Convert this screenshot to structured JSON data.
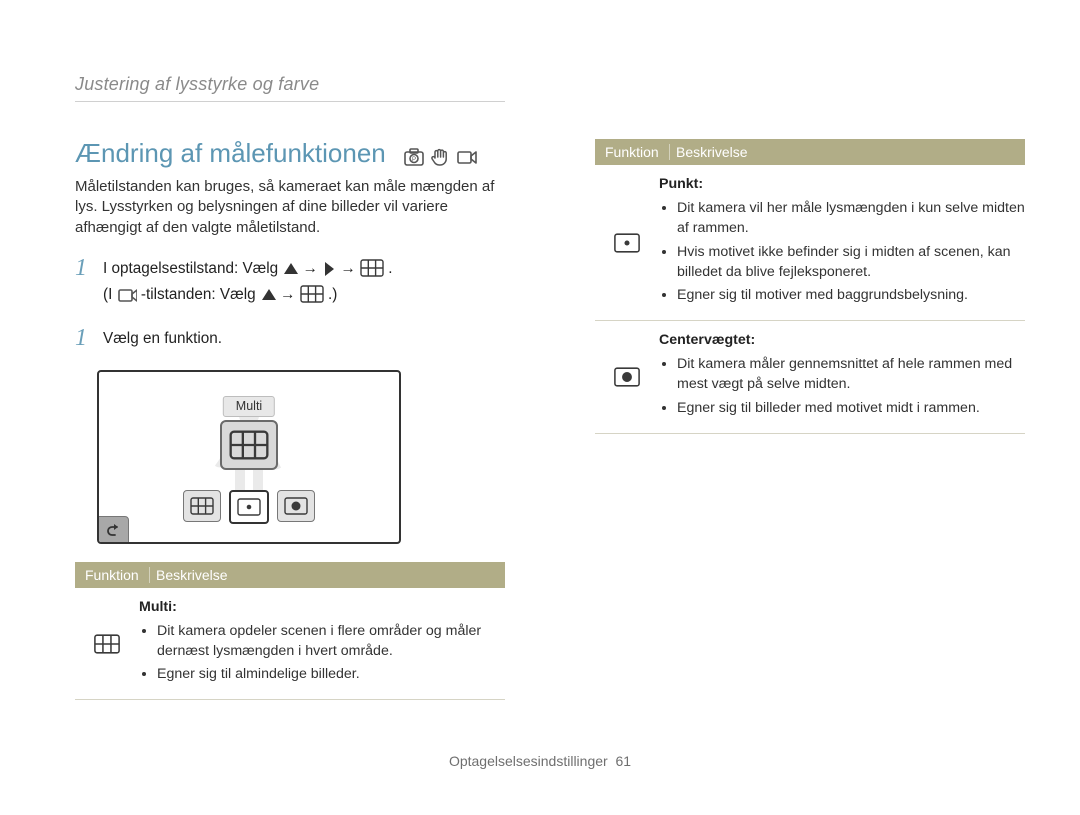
{
  "breadcrumb": "Justering af lysstyrke og farve",
  "h1": "Ændring af målefunktionen",
  "mode_icons": [
    "camera-p",
    "hand",
    "movie"
  ],
  "intro": "Måletilstanden kan bruges, så kameraet kan måle mængden af lys. Lysstyrken og belysningen af dine billeder vil variere afhængigt af den valgte måletilstand.",
  "step1": {
    "prefix": "I optagelsestilstand: Vælg ",
    "seq1": [
      "up-triangle",
      "→",
      "right-chevron",
      "→",
      "meter-multi"
    ],
    "suffix1": ".",
    "line2_prefix": "(I ",
    "movie_icon": "movie",
    "line2_mid": "-tilstanden: Vælg ",
    "seq2": [
      "up-triangle",
      "→",
      "meter-multi"
    ],
    "suffix2": ".)"
  },
  "step2": "Vælg en funktion.",
  "lcd": {
    "pill_label": "Multi"
  },
  "table_head": {
    "func": "Funktion",
    "desc": "Beskrivelse"
  },
  "rows_left": [
    {
      "icon": "meter-multi",
      "title": "Multi:",
      "bullets": [
        "Dit kamera opdeler scenen i flere områder og måler dernæst lysmængden i hvert område.",
        "Egner sig til almindelige billeder."
      ]
    }
  ],
  "rows_right": [
    {
      "icon": "meter-spot",
      "title": "Punkt:",
      "bullets": [
        "Dit kamera vil her måle lysmængden i kun selve midten af rammen.",
        "Hvis motivet ikke befinder sig i midten af scenen, kan billedet da blive fejleksponeret.",
        "Egner sig til motiver med baggrundsbelysning."
      ]
    },
    {
      "icon": "meter-center",
      "title": "Centervægtet:",
      "bullets": [
        "Dit kamera måler gennemsnittet af hele rammen med mest vægt på selve midten.",
        "Egner sig til billeder med motivet midt i rammen."
      ]
    }
  ],
  "footer": {
    "section": "Optagelselsesindstillinger",
    "page": "61"
  },
  "colors": {
    "accent": "#5c96b3",
    "olive": "#b1ad87",
    "rule": "#d6d4c5",
    "text": "#333333",
    "muted": "#8a8a8a"
  }
}
